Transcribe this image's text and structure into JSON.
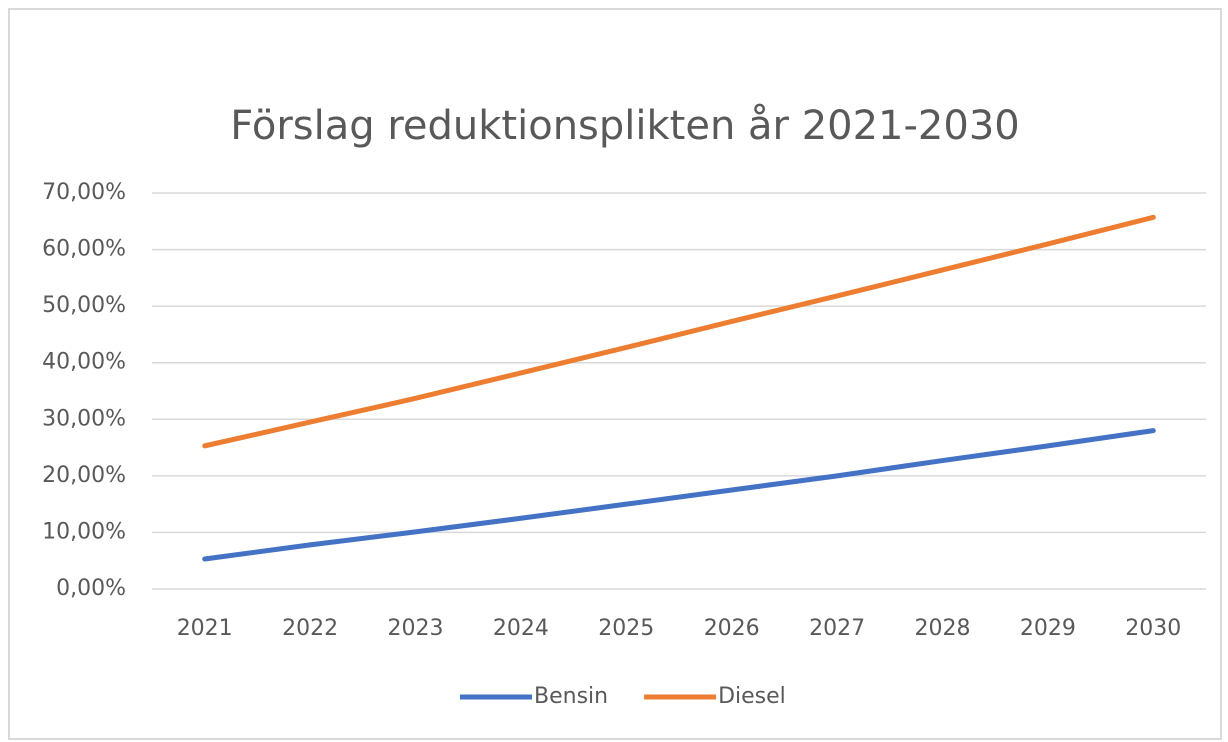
{
  "chart_data": {
    "type": "line",
    "title": "Förslag reduktionsplikten år 2021-2030",
    "categories": [
      "2021",
      "2022",
      "2023",
      "2024",
      "2025",
      "2026",
      "2027",
      "2028",
      "2029",
      "2030"
    ],
    "series": [
      {
        "name": "Bensin",
        "color": "#4472c4",
        "values": [
          5.3,
          7.8,
          10.1,
          12.5,
          15,
          17.5,
          20,
          22.7,
          25.3,
          28
        ]
      },
      {
        "name": "Diesel",
        "color": "#ed7d31",
        "values": [
          25.3,
          29.5,
          33.7,
          38.2,
          42.7,
          47.3,
          51.8,
          56.4,
          61,
          65.7
        ]
      }
    ],
    "ylim": [
      0,
      70
    ],
    "yticks": [
      {
        "value": 0,
        "label": "0,00%"
      },
      {
        "value": 10,
        "label": "10,00%"
      },
      {
        "value": 20,
        "label": "20,00%"
      },
      {
        "value": 30,
        "label": "30,00%"
      },
      {
        "value": 40,
        "label": "40,00%"
      },
      {
        "value": 50,
        "label": "50,00%"
      },
      {
        "value": 60,
        "label": "60,00%"
      },
      {
        "value": 70,
        "label": "70,00%"
      }
    ],
    "grid": true,
    "legend": "bottom"
  }
}
